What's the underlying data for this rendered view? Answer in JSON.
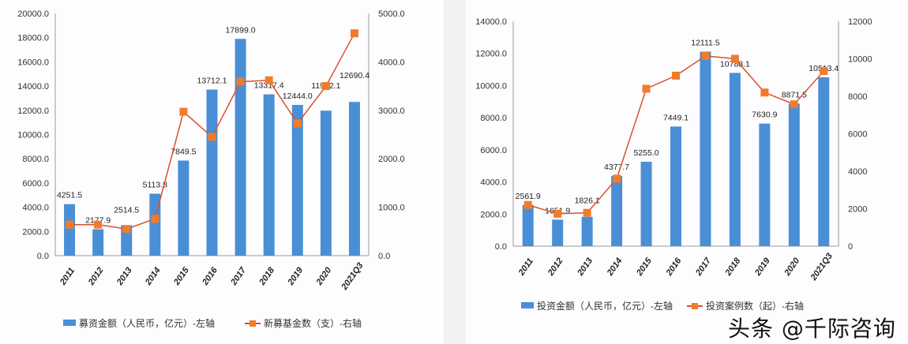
{
  "chart_data": [
    {
      "type": "bar+line",
      "categories": [
        "2011",
        "2012",
        "2013",
        "2014",
        "2015",
        "2016",
        "2017",
        "2018",
        "2019",
        "2020",
        "2021Q3"
      ],
      "series": [
        {
          "name": "募资金额（人民币，亿元）-左轴",
          "kind": "bar",
          "axis": "left",
          "values": [
            4251.5,
            2177.9,
            2514.5,
            5113.8,
            7849.5,
            13712.1,
            17899.0,
            13317.4,
            12444.0,
            11972.1,
            12690.4
          ],
          "labels": [
            "4251.5",
            "2177.9",
            "2514.5",
            "5113.8",
            "7849.5",
            "13712.1",
            "17899.0",
            "13317.4",
            "12444.0",
            "11972.1",
            "12690.4"
          ]
        },
        {
          "name": "新募基金数（支）-右轴",
          "kind": "line",
          "axis": "right",
          "values": [
            640,
            640,
            550,
            760,
            2970,
            2450,
            3590,
            3620,
            2730,
            3500,
            4590
          ]
        }
      ],
      "left_axis": {
        "ylim": [
          0,
          20000
        ],
        "ticks": [
          "0.0",
          "2000.0",
          "4000.0",
          "6000.0",
          "8000.0",
          "10000.0",
          "12000.0",
          "14000.0",
          "16000.0",
          "18000.0",
          "20000.0"
        ]
      },
      "right_axis": {
        "ylim": [
          0,
          5000
        ],
        "ticks": [
          "0.0",
          "1000.0",
          "2000.0",
          "3000.0",
          "4000.0",
          "5000.0"
        ]
      },
      "legend": "bottom",
      "colors": {
        "bar": "#4a8fd6",
        "line": "#d9502a",
        "marker": "#f07c2a"
      }
    },
    {
      "type": "bar+line",
      "categories": [
        "2011",
        "2012",
        "2013",
        "2014",
        "2015",
        "2016",
        "2017",
        "2018",
        "2019",
        "2020",
        "2021Q3"
      ],
      "series": [
        {
          "name": "投资金额（人民币，亿元）-左轴",
          "kind": "bar",
          "axis": "left",
          "values": [
            2561.9,
            1651.9,
            1826.1,
            4377.7,
            5255.0,
            7449.1,
            12111.5,
            10788.1,
            7630.9,
            8871.5,
            10513.4
          ],
          "labels": [
            "2561.9",
            "1651.9",
            "1826.1",
            "4377.7",
            "5255.0",
            "7449.1",
            "12111.5",
            "10788.1",
            "7630.9",
            "8871.5",
            "10513.4"
          ]
        },
        {
          "name": "投资案例数（起）-右轴",
          "kind": "line",
          "axis": "right",
          "values": [
            2200,
            1730,
            1780,
            3600,
            8400,
            9100,
            10150,
            10000,
            8200,
            7570,
            9350
          ]
        }
      ],
      "left_axis": {
        "ylim": [
          0,
          14000
        ],
        "ticks": [
          "0.0",
          "2000.0",
          "4000.0",
          "6000.0",
          "8000.0",
          "10000.0",
          "12000.0",
          "14000.0"
        ]
      },
      "right_axis": {
        "ylim": [
          0,
          12000
        ],
        "ticks": [
          "0",
          "2000",
          "4000",
          "6000",
          "8000",
          "10000",
          "12000"
        ]
      },
      "legend": "bottom",
      "colors": {
        "bar": "#4a8fd6",
        "line": "#d9502a",
        "marker": "#f07c2a"
      }
    }
  ],
  "watermark": "头条 @千际咨询"
}
